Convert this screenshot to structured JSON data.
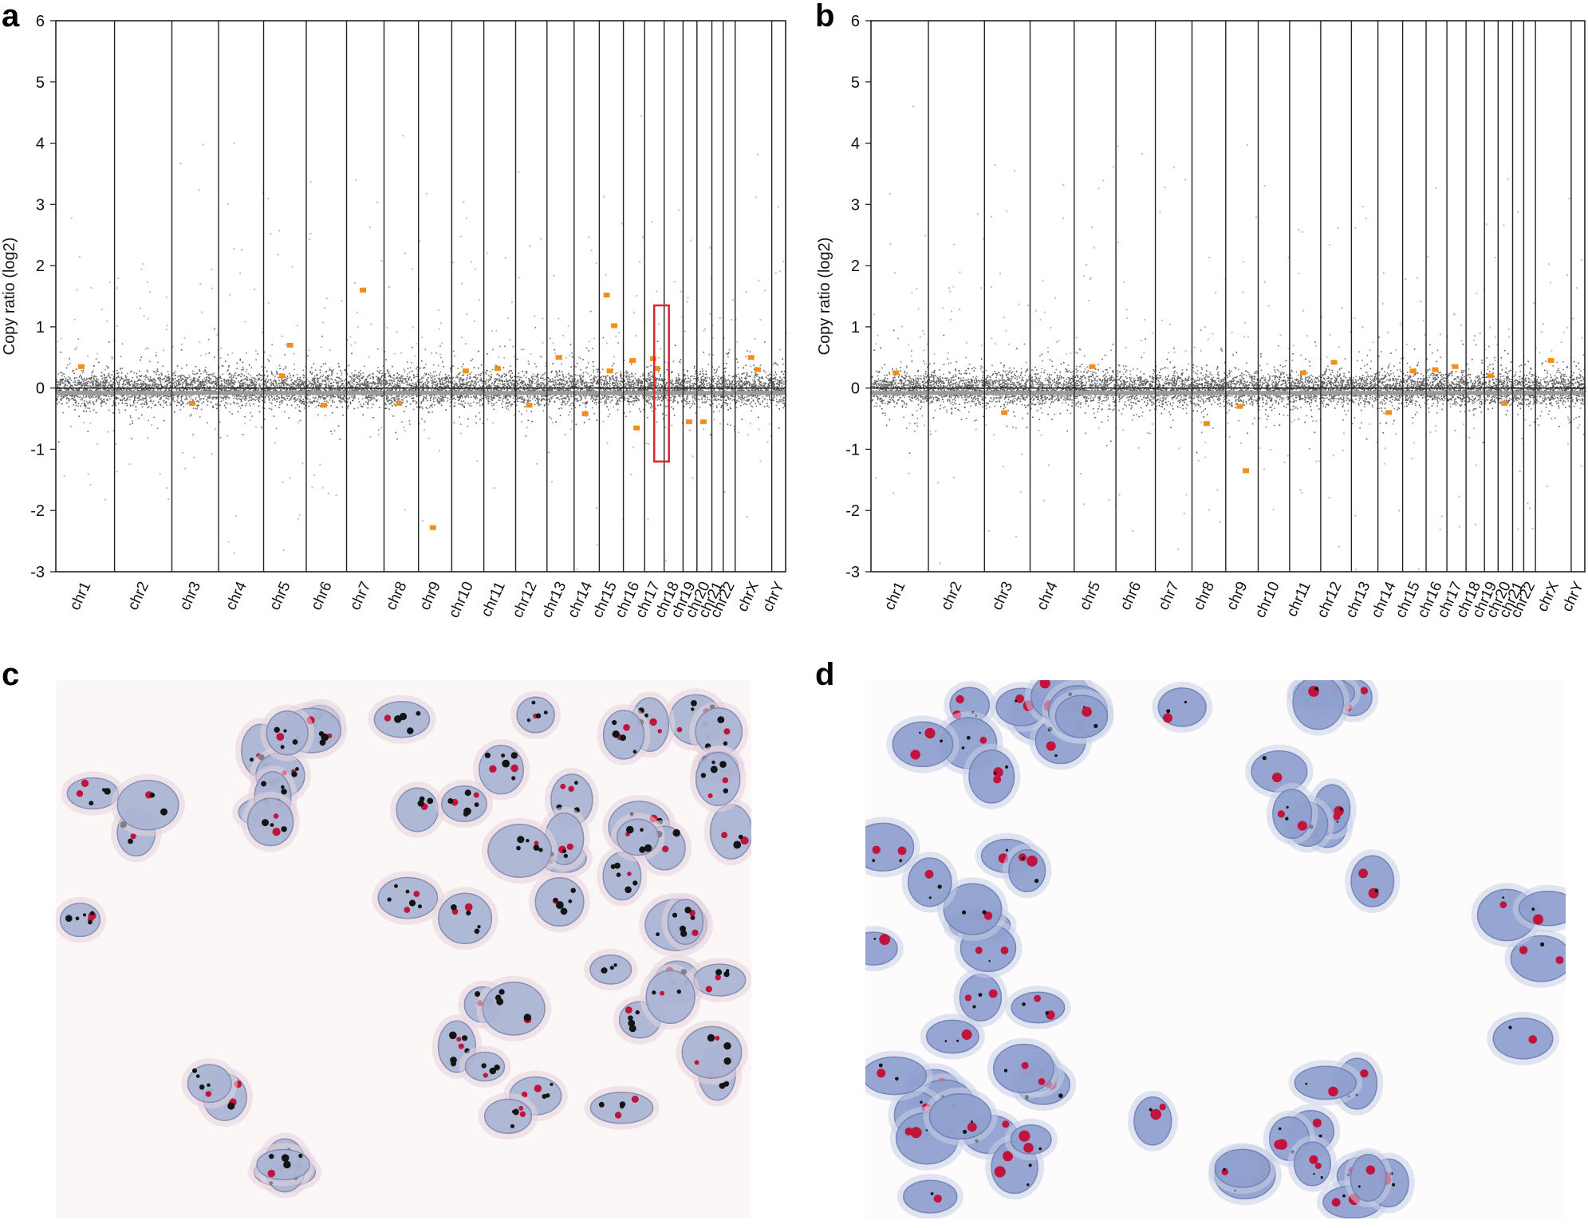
{
  "panels": {
    "a": "a",
    "b": "b",
    "c": "c",
    "d": "d"
  },
  "chart_data": [
    {
      "id": "a",
      "type": "scatter",
      "title": "",
      "xlabel": "",
      "ylabel": "Copy ratio (log2)",
      "ylim": [
        -3,
        6
      ],
      "yticks": [
        -3,
        -2,
        -1,
        0,
        1,
        2,
        3,
        4,
        5,
        6
      ],
      "chromosomes": [
        "chr1",
        "chr2",
        "chr3",
        "chr4",
        "chr5",
        "chr6",
        "chr7",
        "chr8",
        "chr9",
        "chr10",
        "chr11",
        "chr12",
        "chr13",
        "chr14",
        "chr15",
        "chr16",
        "chr17",
        "chr18",
        "chr19",
        "chr20",
        "chr21",
        "chr22",
        "chrX",
        "chrY"
      ],
      "chromosome_widths": [
        249,
        243,
        198,
        191,
        181,
        171,
        159,
        146,
        141,
        136,
        135,
        133,
        115,
        107,
        102,
        90,
        83,
        80,
        59,
        63,
        48,
        51,
        155,
        59
      ],
      "segments": [
        {
          "chr": "chr1",
          "value": 0.35
        },
        {
          "chr": "chr3",
          "value": -0.25
        },
        {
          "chr": "chr5",
          "value": 0.2
        },
        {
          "chr": "chr5",
          "value": 0.7
        },
        {
          "chr": "chr6",
          "value": -0.28
        },
        {
          "chr": "chr7",
          "value": 1.6
        },
        {
          "chr": "chr8",
          "value": -0.25
        },
        {
          "chr": "chr9",
          "value": -2.28
        },
        {
          "chr": "chr10",
          "value": 0.28
        },
        {
          "chr": "chr11",
          "value": 0.32
        },
        {
          "chr": "chr12",
          "value": -0.28
        },
        {
          "chr": "chr13",
          "value": 0.5
        },
        {
          "chr": "chr14",
          "value": -0.42
        },
        {
          "chr": "chr15",
          "value": 0.28
        },
        {
          "chr": "chr15",
          "value": 1.02
        },
        {
          "chr": "chr15",
          "value": 1.52
        },
        {
          "chr": "chr16",
          "value": 0.45
        },
        {
          "chr": "chr16",
          "value": -0.65
        },
        {
          "chr": "chr17",
          "value": 0.48
        },
        {
          "chr": "chr17",
          "value": 0.32
        },
        {
          "chr": "chr19",
          "value": -0.55
        },
        {
          "chr": "chr20",
          "value": -0.55
        },
        {
          "chr": "chrX",
          "value": 0.5
        },
        {
          "chr": "chrX",
          "value": 0.3
        }
      ],
      "highlight": {
        "chr": "chr17",
        "ymin": -1.2,
        "ymax": 1.35
      }
    },
    {
      "id": "b",
      "type": "scatter",
      "title": "",
      "xlabel": "",
      "ylabel": "Copy ratio (log2)",
      "ylim": [
        -3,
        6
      ],
      "yticks": [
        -3,
        -2,
        -1,
        0,
        1,
        2,
        3,
        4,
        5,
        6
      ],
      "chromosomes": [
        "chr1",
        "chr2",
        "chr3",
        "chr4",
        "chr5",
        "chr6",
        "chr7",
        "chr8",
        "chr9",
        "chr10",
        "chr11",
        "chr12",
        "chr13",
        "chr14",
        "chr15",
        "chr16",
        "chr17",
        "chr18",
        "chr19",
        "chr20",
        "chr21",
        "chr22",
        "chrX",
        "chrY"
      ],
      "chromosome_widths": [
        249,
        243,
        198,
        191,
        181,
        171,
        159,
        146,
        141,
        136,
        135,
        133,
        115,
        107,
        102,
        90,
        83,
        80,
        59,
        63,
        48,
        51,
        155,
        59
      ],
      "segments": [
        {
          "chr": "chr1",
          "value": 0.25
        },
        {
          "chr": "chr3",
          "value": -0.4
        },
        {
          "chr": "chr5",
          "value": 0.35
        },
        {
          "chr": "chr8",
          "value": -0.58
        },
        {
          "chr": "chr9",
          "value": -0.3
        },
        {
          "chr": "chr9",
          "value": -1.35
        },
        {
          "chr": "chr11",
          "value": 0.25
        },
        {
          "chr": "chr12",
          "value": 0.42
        },
        {
          "chr": "chr14",
          "value": -0.4
        },
        {
          "chr": "chr15",
          "value": 0.28
        },
        {
          "chr": "chr16",
          "value": 0.3
        },
        {
          "chr": "chr17",
          "value": 0.35
        },
        {
          "chr": "chr19",
          "value": 0.2
        },
        {
          "chr": "chr20",
          "value": -0.25
        },
        {
          "chr": "chrX",
          "value": 0.45
        }
      ]
    }
  ]
}
